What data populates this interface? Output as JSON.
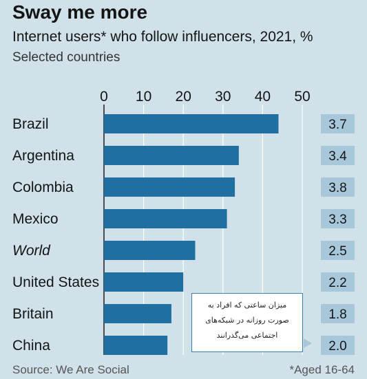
{
  "header": {
    "title": "Sway me more",
    "subtitle": "Internet users* who follow influencers, 2021, %",
    "subtitle2": "Selected countries"
  },
  "footer": {
    "source": "Source: We Are Social",
    "footnote": "*Aged 16-64"
  },
  "callout": {
    "text": "میزان ساعتی که افراد به صورت روزانه در شبکه‌های اجتماعی می‌گذرانند"
  },
  "colors": {
    "background": "#d0e1e9",
    "bar": "#1f6fa0",
    "hours_box": "#a7c8da",
    "grid": "#ffffff"
  },
  "chart_data": {
    "type": "bar",
    "orientation": "horizontal",
    "categories": [
      "Brazil",
      "Argentina",
      "Colombia",
      "Mexico",
      "World",
      "United States",
      "Britain",
      "China"
    ],
    "italic_categories": [
      "World"
    ],
    "values": [
      44,
      34,
      33,
      31,
      23,
      20,
      17,
      16
    ],
    "xlim": [
      0,
      50
    ],
    "xticks": [
      0,
      10,
      20,
      30,
      40,
      50
    ],
    "grid": true,
    "hours_per_day": [
      "3.7",
      "3.4",
      "3.8",
      "3.3",
      "2.5",
      "2.2",
      "1.8",
      "2.0"
    ]
  }
}
